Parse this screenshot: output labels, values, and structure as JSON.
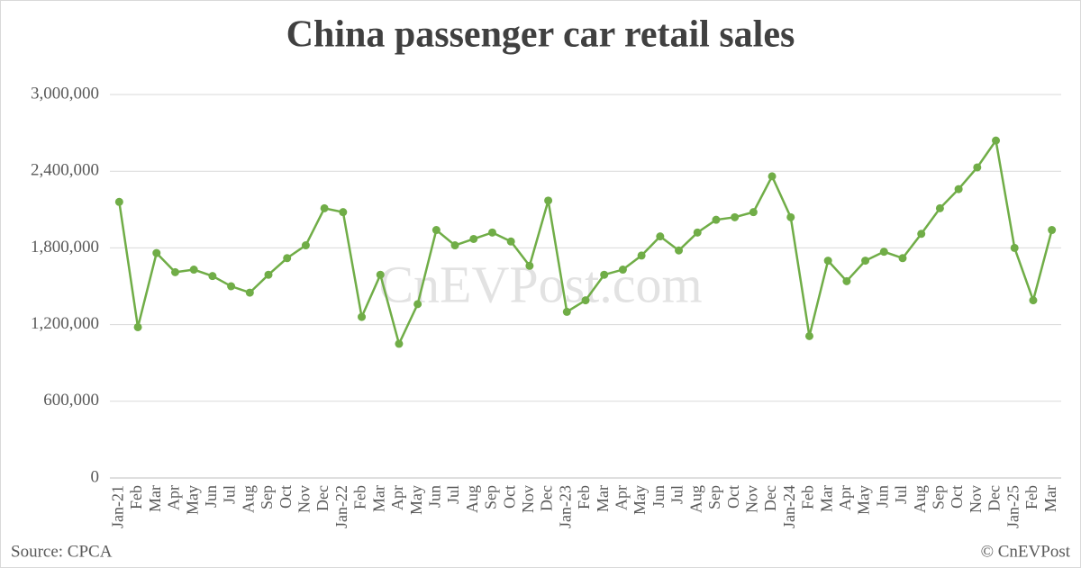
{
  "chart_data": {
    "type": "line",
    "title": "China passenger car retail sales",
    "watermark": "CnEVPost.com",
    "source": "Source: CPCA",
    "credit": "© CnEVPost",
    "categories": [
      "Jan-21",
      "Feb",
      "Mar",
      "Apr",
      "May",
      "Jun",
      "Jul",
      "Aug",
      "Sep",
      "Oct",
      "Nov",
      "Dec",
      "Jan-22",
      "Feb",
      "Mar",
      "Apr",
      "May",
      "Jun",
      "Jul",
      "Aug",
      "Sep",
      "Oct",
      "Nov",
      "Dec",
      "Jan-23",
      "Feb",
      "Mar",
      "Apr",
      "May",
      "Jun",
      "Jul",
      "Aug",
      "Sep",
      "Oct",
      "Nov",
      "Dec",
      "Jan-24",
      "Feb",
      "Mar",
      "Apr",
      "May",
      "Jun",
      "Jul",
      "Aug",
      "Sep",
      "Oct",
      "Nov",
      "Dec",
      "Jan-25",
      "Feb",
      "Mar"
    ],
    "series": [
      {
        "name": "Retail sales",
        "color": "#70ad47",
        "values": [
          2160000,
          1180000,
          1760000,
          1610000,
          1630000,
          1580000,
          1500000,
          1450000,
          1590000,
          1720000,
          1820000,
          2110000,
          2080000,
          1260000,
          1590000,
          1050000,
          1360000,
          1940000,
          1820000,
          1870000,
          1920000,
          1850000,
          1660000,
          2170000,
          1300000,
          1390000,
          1590000,
          1630000,
          1740000,
          1890000,
          1780000,
          1920000,
          2020000,
          2040000,
          2080000,
          2360000,
          2040000,
          1110000,
          1700000,
          1540000,
          1700000,
          1770000,
          1720000,
          1910000,
          2110000,
          2260000,
          2430000,
          2640000,
          1800000,
          1390000,
          1940000
        ]
      }
    ],
    "ylim": [
      0,
      3000000
    ],
    "yticks": [
      0,
      {
        "value": 600000,
        "label": "600,000"
      },
      {
        "value": 1200000,
        "label": "1,200,000"
      },
      {
        "value": 1800000,
        "label": "1,800,000"
      },
      {
        "value": 2400000,
        "label": "2,400,000"
      },
      {
        "value": 3000000,
        "label": "3,000,000"
      }
    ],
    "grid": true
  }
}
